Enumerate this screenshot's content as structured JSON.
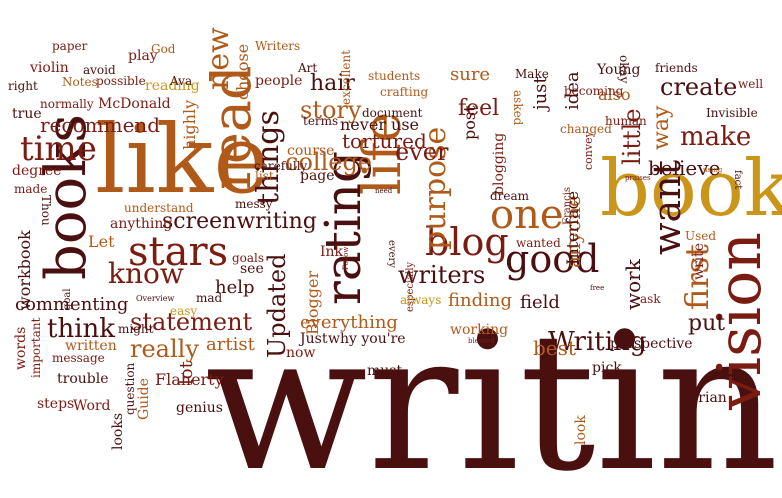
{
  "palette": {
    "dark_maroon": "#4a1010",
    "maroon": "#7a1c12",
    "red_brown": "#8f2a14",
    "rust": "#b05a1a",
    "gold": "#c9961a",
    "dark_gray": "#333333",
    "muted_gray": "#777777"
  },
  "words": [
    {
      "text": "writing",
      "color": "dark_maroon"
    },
    {
      "text": "like",
      "color": "rust"
    },
    {
      "text": "book",
      "color": "gold"
    },
    {
      "text": "vision",
      "color": "maroon"
    },
    {
      "text": "books",
      "color": "dark_maroon"
    },
    {
      "text": "read",
      "color": "rust"
    },
    {
      "text": "life",
      "color": "rust"
    },
    {
      "text": "rating",
      "color": "dark_maroon"
    },
    {
      "text": "stars",
      "color": "maroon"
    },
    {
      "text": "one",
      "color": "rust"
    },
    {
      "text": "want",
      "color": "dark_maroon"
    },
    {
      "text": "blog",
      "color": "maroon"
    },
    {
      "text": "good",
      "color": "dark_maroon"
    },
    {
      "text": "purpose",
      "color": "rust"
    },
    {
      "text": "time",
      "color": "maroon"
    },
    {
      "text": "new",
      "color": "rust"
    },
    {
      "text": "things",
      "color": "dark_maroon"
    },
    {
      "text": "first",
      "color": "rust"
    },
    {
      "text": "screenwriting",
      "color": "dark_maroon"
    },
    {
      "text": "know",
      "color": "maroon"
    },
    {
      "text": "college",
      "color": "rust"
    },
    {
      "text": "story",
      "color": "rust"
    },
    {
      "text": "Writing",
      "color": "dark_maroon"
    },
    {
      "text": "statement",
      "color": "maroon"
    },
    {
      "text": "make",
      "color": "maroon"
    },
    {
      "text": "create",
      "color": "dark_maroon"
    },
    {
      "text": "think",
      "color": "dark_maroon"
    },
    {
      "text": "really",
      "color": "rust"
    },
    {
      "text": "ever",
      "color": "maroon"
    },
    {
      "text": "tortured",
      "color": "maroon"
    },
    {
      "text": "recommend",
      "color": "maroon"
    },
    {
      "text": "writers",
      "color": "dark_maroon"
    },
    {
      "text": "Updated",
      "color": "dark_maroon"
    },
    {
      "text": "everything",
      "color": "rust"
    },
    {
      "text": "commenting",
      "color": "dark_maroon"
    },
    {
      "text": "little",
      "color": "maroon"
    },
    {
      "text": "way",
      "color": "rust"
    },
    {
      "text": "believe",
      "color": "dark_maroon"
    },
    {
      "text": "anyone",
      "color": "rust"
    },
    {
      "text": "work",
      "color": "dark_maroon"
    },
    {
      "text": "feel",
      "color": "maroon"
    },
    {
      "text": "sure",
      "color": "rust"
    },
    {
      "text": "hair",
      "color": "dark_maroon"
    },
    {
      "text": "highly",
      "color": "rust"
    },
    {
      "text": "choose",
      "color": "rust"
    },
    {
      "text": "workbook",
      "color": "dark_maroon"
    },
    {
      "text": "finding",
      "color": "rust"
    },
    {
      "text": "artist",
      "color": "rust"
    },
    {
      "text": "best",
      "color": "rust"
    },
    {
      "text": "put",
      "color": "dark_maroon"
    },
    {
      "text": "help",
      "color": "dark_maroon"
    },
    {
      "text": "lot",
      "color": "maroon"
    },
    {
      "text": "never use",
      "color": "dark_maroon"
    },
    {
      "text": "page",
      "color": "dark_maroon"
    },
    {
      "text": "course",
      "color": "rust"
    },
    {
      "text": "idea",
      "color": "dark_maroon"
    },
    {
      "text": "also",
      "color": "rust"
    },
    {
      "text": "just",
      "color": "dark_maroon"
    },
    {
      "text": "Interface",
      "color": "dark_maroon"
    },
    {
      "text": "post",
      "color": "dark_maroon"
    },
    {
      "text": "blogging",
      "color": "maroon"
    },
    {
      "text": "field",
      "color": "dark_maroon"
    },
    {
      "text": "Blogger",
      "color": "rust"
    },
    {
      "text": "Let",
      "color": "rust"
    },
    {
      "text": "Flaherty",
      "color": "maroon"
    },
    {
      "text": "genius",
      "color": "dark_maroon"
    },
    {
      "text": "Brian",
      "color": "dark_maroon"
    },
    {
      "text": "Guide",
      "color": "rust"
    },
    {
      "text": "write",
      "color": "maroon"
    },
    {
      "text": "pick",
      "color": "dark_maroon"
    },
    {
      "text": "look",
      "color": "rust"
    },
    {
      "text": "must",
      "color": "dark_maroon"
    },
    {
      "text": "degree",
      "color": "maroon"
    },
    {
      "text": "true",
      "color": "dark_maroon"
    },
    {
      "text": "made",
      "color": "maroon"
    },
    {
      "text": "Thou",
      "color": "dark_maroon"
    },
    {
      "text": "anything",
      "color": "maroon"
    },
    {
      "text": "understand",
      "color": "rust"
    },
    {
      "text": "messy",
      "color": "dark_maroon"
    },
    {
      "text": "list",
      "color": "rust"
    },
    {
      "text": "carefully",
      "color": "dark_maroon"
    },
    {
      "text": "McDonald",
      "color": "maroon"
    },
    {
      "text": "normally",
      "color": "maroon"
    },
    {
      "text": "Notes",
      "color": "rust"
    },
    {
      "text": "right",
      "color": "dark_maroon"
    },
    {
      "text": "violin",
      "color": "maroon"
    },
    {
      "text": "paper",
      "color": "maroon"
    },
    {
      "text": "play",
      "color": "maroon"
    },
    {
      "text": "God",
      "color": "rust"
    },
    {
      "text": "avoid",
      "color": "dark_maroon"
    },
    {
      "text": "possible",
      "color": "maroon"
    },
    {
      "text": "reading",
      "color": "gold"
    },
    {
      "text": "Ava",
      "color": "dark_maroon"
    },
    {
      "text": "Writers",
      "color": "rust"
    },
    {
      "text": "people",
      "color": "maroon"
    },
    {
      "text": "Art",
      "color": "dark_maroon"
    },
    {
      "text": "excellent",
      "color": "rust"
    },
    {
      "text": "students",
      "color": "rust"
    },
    {
      "text": "crafting",
      "color": "rust"
    },
    {
      "text": "terms",
      "color": "dark_maroon"
    },
    {
      "text": "document",
      "color": "dark_maroon"
    },
    {
      "text": "Make",
      "color": "dark_maroon"
    },
    {
      "text": "asked",
      "color": "rust"
    },
    {
      "text": "convey",
      "color": "maroon"
    },
    {
      "text": "becoming",
      "color": "maroon"
    },
    {
      "text": "okay",
      "color": "dark_maroon"
    },
    {
      "text": "human",
      "color": "maroon"
    },
    {
      "text": "changed",
      "color": "rust"
    },
    {
      "text": "Young",
      "color": "dark_maroon"
    },
    {
      "text": "friends",
      "color": "dark_maroon"
    },
    {
      "text": "well",
      "color": "maroon"
    },
    {
      "text": "Invisible",
      "color": "dark_maroon"
    },
    {
      "text": "fact",
      "color": "dark_maroon"
    },
    {
      "text": "praises",
      "color": "maroon"
    },
    {
      "text": "using",
      "color": "rust"
    },
    {
      "text": "Francis",
      "color": "maroon"
    },
    {
      "text": "dream",
      "color": "dark_maroon"
    },
    {
      "text": "wanted",
      "color": "maroon"
    },
    {
      "text": "especially",
      "color": "maroon"
    },
    {
      "text": "every",
      "color": "dark_maroon"
    },
    {
      "text": "need",
      "color": "dark_maroon"
    },
    {
      "text": "Follow",
      "color": "maroon"
    },
    {
      "text": "Ink",
      "color": "maroon"
    },
    {
      "text": "see",
      "color": "dark_maroon"
    },
    {
      "text": "goals",
      "color": "maroon"
    },
    {
      "text": "mad",
      "color": "dark_maroon"
    },
    {
      "text": "Overview",
      "color": "dark_maroon"
    },
    {
      "text": "easy",
      "color": "gold"
    },
    {
      "text": "might",
      "color": "dark_maroon"
    },
    {
      "text": "goal",
      "color": "dark_maroon"
    },
    {
      "text": "words",
      "color": "maroon"
    },
    {
      "text": "important",
      "color": "maroon"
    },
    {
      "text": "written",
      "color": "rust"
    },
    {
      "text": "message",
      "color": "maroon"
    },
    {
      "text": "question",
      "color": "dark_maroon"
    },
    {
      "text": "trouble",
      "color": "dark_maroon"
    },
    {
      "text": "steps",
      "color": "maroon"
    },
    {
      "text": "Word",
      "color": "maroon"
    },
    {
      "text": "looks",
      "color": "dark_maroon"
    },
    {
      "text": "now",
      "color": "maroon"
    },
    {
      "text": "Just",
      "color": "dark_maroon"
    },
    {
      "text": "why you're",
      "color": "dark_maroon"
    },
    {
      "text": "always",
      "color": "gold"
    },
    {
      "text": "working",
      "color": "rust"
    },
    {
      "text": "blessed",
      "color": "maroon"
    },
    {
      "text": "perspective",
      "color": "dark_maroon"
    },
    {
      "text": "ask",
      "color": "maroon"
    },
    {
      "text": "Used",
      "color": "rust"
    },
    {
      "text": "free",
      "color": "dark_maroon"
    }
  ]
}
